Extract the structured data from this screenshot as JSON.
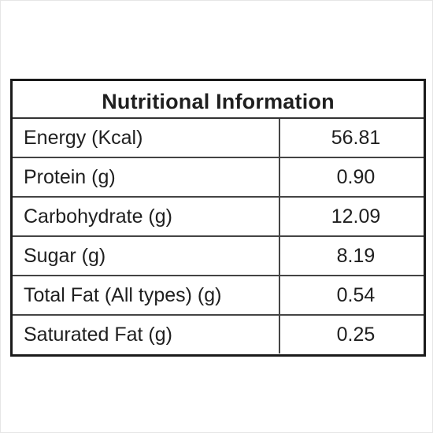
{
  "table": {
    "title": "Nutritional Information",
    "rows": [
      {
        "label": "Energy (Kcal)",
        "value": "56.81"
      },
      {
        "label": "Protein (g)",
        "value": "0.90"
      },
      {
        "label": "Carbohydrate (g)",
        "value": "12.09"
      },
      {
        "label": "Sugar (g)",
        "value": "8.19"
      },
      {
        "label": "Total Fat (All types) (g)",
        "value": "0.54"
      },
      {
        "label": "Saturated Fat (g)",
        "value": "0.25"
      }
    ]
  }
}
